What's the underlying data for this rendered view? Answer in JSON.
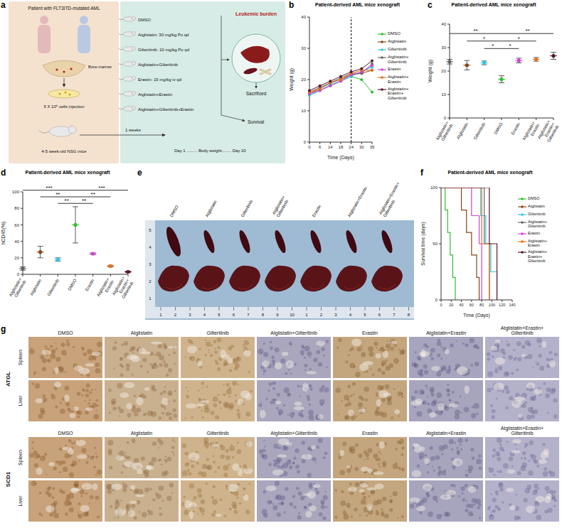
{
  "panels": {
    "a": {
      "letter": "a",
      "patient": "Patient with FLT3ITD-mutated AML",
      "bone_marrow": "Bone marrow",
      "injection": "5 X 10⁶ cells injection",
      "mice": "4-5 week-old NSG mice",
      "wait": "1 weeks",
      "treatments": [
        "DMSO",
        "Atglistatin: 30 mg/kg Po qd",
        "Gilteritinib: 10 mg/kg Po qd",
        "Atglistatin+Gilteritinib",
        "Erastin: 15 mg/kg iv qd",
        "Atglistatin+Erastin",
        "Atglistatin+Gilteritinib+Erastin"
      ],
      "burden": "Leukemic burden",
      "sacrificed": "Sacrificed",
      "survival": "Survival",
      "timeline": "Day 1 ......... Body weight........ Day 20"
    },
    "e": {
      "letter": "e",
      "labels": [
        "DMSO",
        "Atglistatin",
        "Gilteritinib",
        "Atglistatin+Gilteritinib",
        "Erastin",
        "Atglistatin+Erastin",
        "Atglistatin+Erastin+Gilteritinib"
      ],
      "ruler_left": [
        "5",
        "4",
        "3",
        "2",
        "1"
      ],
      "ruler_bottom": [
        "1",
        "2",
        "3",
        "4",
        "5",
        "6",
        "7",
        "8",
        "9",
        "10",
        "1",
        "2",
        "3",
        "4",
        "5",
        "6",
        "7",
        "8"
      ]
    },
    "g": {
      "letter": "g",
      "columns": [
        "DMSO",
        "Atglistatin",
        "Gilteritinib",
        "Atglistatin+Gilteritinib",
        "Erastin",
        "Atglistatin+Erastin",
        "Atglistatin+Erastin+Gilteritinib"
      ],
      "groups": [
        {
          "marker": "ATGL",
          "rows": [
            "Spleen",
            "Liver"
          ]
        },
        {
          "marker": "SCD1",
          "rows": [
            "Spleen",
            "Liver"
          ]
        }
      ]
    }
  },
  "chart_data": [
    {
      "panel": "b",
      "type": "line",
      "title": "Patient-derived AML mice xenograft",
      "x_label": "Time (Days)",
      "y_label": "Weight (g)",
      "categories": [
        "0",
        "6",
        "14",
        "18",
        "24",
        "30",
        "35"
      ],
      "ylim": [
        0,
        40
      ],
      "yticks": [
        0,
        10,
        20,
        30,
        40
      ],
      "vline": 24,
      "marker": "circle",
      "legend": "right",
      "series": [
        {
          "name": "DMSO",
          "color": "#2fbf2f",
          "values": [
            15,
            16.5,
            18,
            19.5,
            21,
            20,
            16
          ]
        },
        {
          "name": "Atglistatin",
          "color": "#8b4513",
          "values": [
            15.5,
            17,
            19,
            20,
            21.5,
            22,
            23
          ]
        },
        {
          "name": "Gilteritinib",
          "color": "#31c6e8",
          "values": [
            15,
            16.5,
            18.5,
            19.5,
            21,
            22.5,
            24
          ]
        },
        {
          "name": "Atglistatin+Gilteritinib",
          "color": "#666666",
          "values": [
            16,
            17.5,
            19,
            20.5,
            22,
            22,
            25
          ]
        },
        {
          "name": "Erastin",
          "color": "#d63fd6",
          "values": [
            15.5,
            16.5,
            18,
            19.5,
            21.5,
            22.5,
            24.5
          ]
        },
        {
          "name": "Atglistatin+Erastin",
          "color": "#e0701c",
          "values": [
            16,
            17,
            19,
            20,
            22,
            23,
            23
          ]
        },
        {
          "name": "Atglistatin+Erastin+Gilteritinib",
          "color": "#5b1526",
          "values": [
            16.5,
            18,
            19.5,
            21,
            22.5,
            23.5,
            26
          ]
        }
      ]
    },
    {
      "panel": "c",
      "type": "scatter",
      "title": "Patient-derived AML mice xenograft",
      "y_label": "Weight (g)",
      "categories": [
        "Atglistatin+Gilteritinib",
        "Atglistatin",
        "Gilteritinib",
        "DMSO",
        "Erastin",
        "Atglistatin+Erastin",
        "Atglistatin+Erastin+Gilteritinib"
      ],
      "values": [
        24,
        22.5,
        23.5,
        16.5,
        24.5,
        25,
        26.5
      ],
      "errors": [
        1,
        2,
        0.8,
        1.5,
        1,
        0.8,
        1.5
      ],
      "colors": [
        "#666666",
        "#8b4513",
        "#31c6e8",
        "#2fbf2f",
        "#d63fd6",
        "#e0701c",
        "#5b1526"
      ],
      "ylim": [
        0,
        40
      ],
      "yticks": [
        0,
        10,
        20,
        30,
        40
      ],
      "annotations": [
        {
          "from": "Atglistatin+Gilteritinib",
          "to": "DMSO",
          "label": "**"
        },
        {
          "from": "Atglistatin",
          "to": "DMSO",
          "label": "*"
        },
        {
          "from": "Gilteritinib",
          "to": "DMSO",
          "label": "*"
        },
        {
          "from": "DMSO",
          "to": "Erastin",
          "label": "*"
        },
        {
          "from": "DMSO",
          "to": "Atglistatin+Erastin",
          "label": "*"
        },
        {
          "from": "DMSO",
          "to": "Atglistatin+Erastin+Gilteritinib",
          "label": "**"
        }
      ]
    },
    {
      "panel": "d",
      "type": "scatter",
      "title": "Patient-derived AML mice xenograft",
      "y_label": "hCD45(%)",
      "categories": [
        "Atglistatin+Gilteritinib",
        "Atglistatin",
        "Gilteritinib",
        "DMSO",
        "Erastin",
        "Atglistatin+Erastin",
        "Atglistatin+Erastin+Gilteritinib"
      ],
      "values": [
        7,
        27,
        18,
        60,
        25,
        10,
        3
      ],
      "errors": [
        2,
        7,
        2,
        22,
        1,
        1,
        1
      ],
      "colors": [
        "#666666",
        "#8b4513",
        "#31c6e8",
        "#2fbf2f",
        "#d63fd6",
        "#e0701c",
        "#5b1526"
      ],
      "ylim": [
        0,
        100
      ],
      "yticks": [
        0,
        20,
        40,
        60,
        80,
        100
      ],
      "annotations": [
        {
          "from": "Atglistatin+Gilteritinib",
          "to": "DMSO",
          "label": "***"
        },
        {
          "from": "Atglistatin",
          "to": "DMSO",
          "label": "**"
        },
        {
          "from": "Gilteritinib",
          "to": "DMSO",
          "label": "**"
        },
        {
          "from": "DMSO",
          "to": "Erastin",
          "label": "**"
        },
        {
          "from": "DMSO",
          "to": "Atglistatin+Erastin",
          "label": "**"
        },
        {
          "from": "DMSO",
          "to": "Atglistatin+Erastin+Gilteritinib",
          "label": "***"
        }
      ]
    },
    {
      "panel": "f",
      "type": "line",
      "line_style": "step",
      "title": "Patient-derived AML mice xenograft",
      "x_label": "Time (Days)",
      "y_label": "Survival time (days)",
      "xlim": [
        0,
        140
      ],
      "xticks": [
        0,
        20,
        40,
        60,
        80,
        100,
        120,
        140
      ],
      "ylim": [
        0,
        100
      ],
      "yticks": [
        0,
        50,
        100
      ],
      "legend": "right",
      "series": [
        {
          "name": "DMSO",
          "color": "#2fbf2f",
          "x": [
            0,
            8,
            13,
            18,
            23,
            28
          ],
          "values": [
            100,
            80,
            60,
            40,
            20,
            0
          ]
        },
        {
          "name": "Atglistatin",
          "color": "#8b4513",
          "x": [
            0,
            40,
            50,
            60,
            70,
            75
          ],
          "values": [
            100,
            80,
            60,
            40,
            20,
            0
          ]
        },
        {
          "name": "Gilteritinib",
          "color": "#31c6e8",
          "x": [
            0,
            78,
            88,
            98,
            110
          ],
          "values": [
            100,
            75,
            50,
            25,
            0
          ]
        },
        {
          "name": "Atglistatin+Gilteritinib",
          "color": "#666666",
          "x": [
            0,
            85,
            95
          ],
          "values": [
            100,
            50,
            0
          ]
        },
        {
          "name": "Erastin",
          "color": "#d63fd6",
          "x": [
            0,
            60,
            75,
            80
          ],
          "values": [
            100,
            75,
            50,
            0
          ]
        },
        {
          "name": "Atglistatin+Erastin",
          "color": "#e0701c",
          "x": [
            0,
            80,
            95
          ],
          "values": [
            100,
            50,
            0
          ]
        },
        {
          "name": "Atglistatin+Erastin+Gilteritinib",
          "color": "#5b1526",
          "x": [
            0,
            95,
            110
          ],
          "values": [
            100,
            50,
            0
          ]
        }
      ]
    }
  ]
}
